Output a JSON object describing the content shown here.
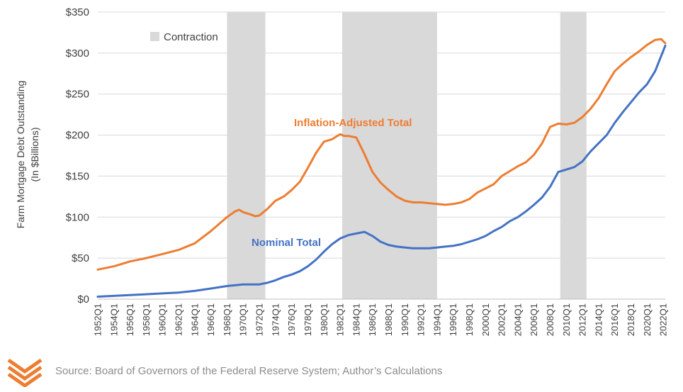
{
  "chart_data": {
    "type": "line",
    "title": "",
    "ylabel_line1": "Farm Mortgage Debt Outstanding",
    "ylabel_line2": "(In $Billions)",
    "xlabel": "",
    "ylim": [
      0,
      350
    ],
    "y_ticks": [
      "$0",
      "$50",
      "$100",
      "$150",
      "$200",
      "$250",
      "$300",
      "$350"
    ],
    "x_range": [
      1952.0,
      2022.25
    ],
    "x_ticks": [
      "1952Q1",
      "1954Q1",
      "1956Q1",
      "1958Q1",
      "1960Q1",
      "1962Q1",
      "1964Q1",
      "1966Q1",
      "1968Q1",
      "1970Q1",
      "1972Q1",
      "1974Q1",
      "1976Q1",
      "1978Q1",
      "1980Q1",
      "1982Q1",
      "1984Q1",
      "1986Q1",
      "1988Q1",
      "1990Q1",
      "1992Q1",
      "1994Q1",
      "1996Q1",
      "1998Q1",
      "2000Q1",
      "2002Q1",
      "2004Q1",
      "2006Q1",
      "2008Q1",
      "2010Q1",
      "2012Q1",
      "2014Q1",
      "2016Q1",
      "2018Q1",
      "2020Q1",
      "2022Q1"
    ],
    "grid": "horizontal",
    "legend": {
      "label": "Contraction",
      "color": "#d9d9d9",
      "position": "top-left"
    },
    "contraction_periods": [
      [
        1968.0,
        1972.75
      ],
      [
        1982.25,
        1994.0
      ],
      [
        2009.25,
        2012.5
      ]
    ],
    "series": [
      {
        "name": "Inflation-Adjusted Total",
        "color": "#ed7d31",
        "x": [
          1952,
          1954,
          1956,
          1958,
          1960,
          1962,
          1964,
          1966,
          1968,
          1969,
          1969.5,
          1970,
          1971,
          1971.5,
          1972,
          1973,
          1974,
          1975,
          1976,
          1977,
          1978,
          1979,
          1980,
          1981,
          1982,
          1982.5,
          1983,
          1984,
          1985,
          1986,
          1987,
          1988,
          1989,
          1990,
          1991,
          1992,
          1993,
          1994,
          1995,
          1996,
          1997,
          1998,
          1999,
          2000,
          2001,
          2002,
          2003,
          2004,
          2005,
          2006,
          2007,
          2008,
          2009,
          2010,
          2011,
          2012,
          2013,
          2014,
          2015,
          2016,
          2017,
          2018,
          2019,
          2020,
          2021,
          2021.75,
          2022.25
        ],
        "values": [
          36,
          40,
          46,
          50,
          55,
          60,
          68,
          83,
          100,
          107,
          109,
          106,
          103,
          101,
          102,
          110,
          120,
          125,
          133,
          143,
          160,
          178,
          192,
          195,
          201,
          199,
          199,
          197,
          177,
          155,
          142,
          133,
          125,
          120,
          118,
          118,
          117,
          116,
          115,
          116,
          118,
          122,
          130,
          135,
          140,
          150,
          156,
          162,
          167,
          176,
          190,
          210,
          214,
          213,
          215,
          222,
          232,
          245,
          262,
          278,
          287,
          295,
          302,
          310,
          316,
          317,
          312
        ],
        "label_text": "Inflation-Adjusted Total",
        "label_position": "above the curve near 1982"
      },
      {
        "name": "Nominal Total",
        "color": "#4472c4",
        "x": [
          1952,
          1954,
          1956,
          1958,
          1960,
          1962,
          1964,
          1966,
          1968,
          1970,
          1972,
          1973,
          1974,
          1975,
          1976,
          1977,
          1978,
          1979,
          1980,
          1981,
          1982,
          1983,
          1984,
          1985,
          1986,
          1987,
          1988,
          1989,
          1990,
          1991,
          1992,
          1993,
          1994,
          1995,
          1996,
          1997,
          1998,
          1999,
          2000,
          2001,
          2002,
          2003,
          2004,
          2005,
          2006,
          2007,
          2008,
          2009,
          2010,
          2011,
          2012,
          2013,
          2014,
          2015,
          2016,
          2017,
          2018,
          2019,
          2020,
          2021,
          2022.25
        ],
        "values": [
          3,
          4,
          5,
          6,
          7,
          8,
          10,
          13,
          16,
          18,
          18,
          20,
          23,
          27,
          30,
          34,
          40,
          48,
          58,
          67,
          74,
          78,
          80,
          82,
          77,
          70,
          66,
          64,
          63,
          62,
          62,
          62,
          63,
          64,
          65,
          67,
          70,
          73,
          77,
          83,
          88,
          95,
          100,
          107,
          115,
          124,
          137,
          155,
          158,
          161,
          168,
          180,
          190,
          200,
          215,
          228,
          240,
          252,
          262,
          278,
          309
        ],
        "label_text": "Nominal Total",
        "label_position": "left of the curve near 1978"
      }
    ]
  },
  "footer": {
    "source": "Source: Board of Governors of the Federal Reserve System; Author’s Calculations",
    "logo_icon": "chevron-stack-logo",
    "logo_color": "#ed7d31"
  }
}
